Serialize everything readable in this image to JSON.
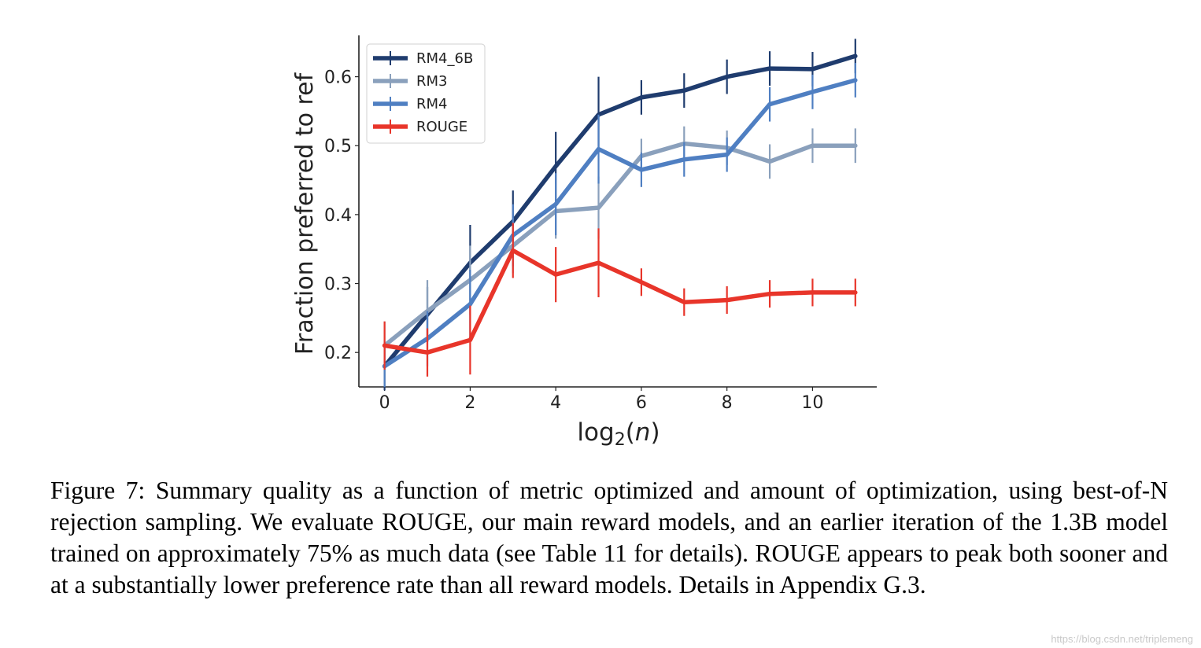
{
  "chart_data": {
    "type": "line",
    "title": "",
    "xlabel_base": "log",
    "xlabel_sub": "2",
    "xlabel_arg": "n",
    "ylabel": "Fraction preferred to ref",
    "xlim": [
      -0.6,
      11.5
    ],
    "ylim": [
      0.15,
      0.66
    ],
    "xticks": [
      0,
      2,
      4,
      6,
      8,
      10
    ],
    "yticks": [
      0.2,
      0.3,
      0.4,
      0.5,
      0.6
    ],
    "grid": false,
    "legend_position": "top-left",
    "series": [
      {
        "name": "RM4_6B",
        "color": "#1f3c6e",
        "x": [
          0,
          1,
          2,
          3,
          4,
          5,
          6,
          7,
          8,
          9,
          10,
          11
        ],
        "y": [
          0.18,
          0.255,
          0.33,
          0.39,
          0.47,
          0.545,
          0.57,
          0.58,
          0.6,
          0.612,
          0.611,
          0.63
        ],
        "err": [
          0.035,
          0.04,
          0.055,
          0.045,
          0.05,
          0.055,
          0.025,
          0.025,
          0.025,
          0.025,
          0.025,
          0.025
        ]
      },
      {
        "name": "RM3",
        "color": "#8aa0bc",
        "x": [
          0,
          1,
          2,
          3,
          4,
          5,
          6,
          7,
          8,
          9,
          10,
          11
        ],
        "y": [
          0.21,
          0.26,
          0.305,
          0.355,
          0.405,
          0.41,
          0.485,
          0.503,
          0.497,
          0.477,
          0.5,
          0.5
        ],
        "err": [
          0.035,
          0.045,
          0.05,
          0.04,
          0.04,
          0.045,
          0.025,
          0.025,
          0.025,
          0.025,
          0.025,
          0.025
        ]
      },
      {
        "name": "RM4",
        "color": "#4f7fc2",
        "x": [
          0,
          1,
          2,
          3,
          4,
          5,
          6,
          7,
          8,
          9,
          10,
          11
        ],
        "y": [
          0.18,
          0.22,
          0.27,
          0.37,
          0.415,
          0.495,
          0.465,
          0.48,
          0.487,
          0.56,
          0.578,
          0.595
        ],
        "err": [
          0.03,
          0.04,
          0.05,
          0.045,
          0.045,
          0.05,
          0.025,
          0.025,
          0.025,
          0.025,
          0.025,
          0.025
        ]
      },
      {
        "name": "ROUGE",
        "color": "#e8352a",
        "x": [
          0,
          1,
          2,
          3,
          4,
          5,
          6,
          7,
          8,
          9,
          10,
          11
        ],
        "y": [
          0.21,
          0.2,
          0.218,
          0.348,
          0.313,
          0.33,
          0.302,
          0.273,
          0.276,
          0.285,
          0.287,
          0.287
        ],
        "err": [
          0.035,
          0.035,
          0.05,
          0.04,
          0.04,
          0.05,
          0.02,
          0.02,
          0.02,
          0.02,
          0.02,
          0.02
        ]
      }
    ]
  },
  "caption": "Figure 7: Summary quality as a function of metric optimized and amount of optimization, using best-of-N rejection sampling. We evaluate ROUGE, our main reward models, and an earlier iteration of the 1.3B model trained on approximately 75% as much data (see Table 11 for details). ROUGE appears to peak both sooner and at a substantially lower preference rate than all reward models. Details in Appendix G.3.",
  "watermark": "https://blog.csdn.net/triplemeng"
}
